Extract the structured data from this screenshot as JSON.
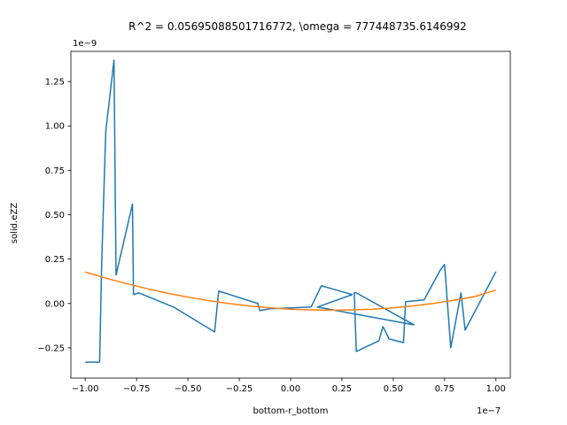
{
  "chart_data": {
    "type": "line",
    "title": "R^2 = 0.05695088501716772, \\omega = 777448735.6146992",
    "xlabel": "bottom-r_bottom",
    "ylabel": "solid.eZZ",
    "x_offset_label": "1e−7",
    "y_offset_label": "1e−9",
    "xlim": [
      -1.07e-07,
      1.07e-07
    ],
    "ylim": [
      -4.2e-10,
      1.42e-09
    ],
    "x_ticks": [
      {
        "value": -1e-07,
        "label": "−1.00"
      },
      {
        "value": -7.5e-08,
        "label": "−0.75"
      },
      {
        "value": -5e-08,
        "label": "−0.50"
      },
      {
        "value": -2.5e-08,
        "label": "−0.25"
      },
      {
        "value": 0.0,
        "label": "0.00"
      },
      {
        "value": 2.5e-08,
        "label": "0.25"
      },
      {
        "value": 5e-08,
        "label": "0.50"
      },
      {
        "value": 7.5e-08,
        "label": "0.75"
      },
      {
        "value": 1e-07,
        "label": "1.00"
      }
    ],
    "y_ticks": [
      {
        "value": -2.5e-10,
        "label": "−0.25"
      },
      {
        "value": 0.0,
        "label": "0.00"
      },
      {
        "value": 2.5e-10,
        "label": "0.25"
      },
      {
        "value": 5e-10,
        "label": "0.50"
      },
      {
        "value": 7.5e-10,
        "label": "0.75"
      },
      {
        "value": 1e-09,
        "label": "1.00"
      },
      {
        "value": 1.25e-09,
        "label": "1.25"
      }
    ],
    "grid": false,
    "series": [
      {
        "color": "#1f77b4",
        "x": [
          -1e-07,
          -9.3e-08,
          -9.2e-08,
          -9e-08,
          -8.6e-08,
          -8.5e-08,
          -7.7e-08,
          -7.65e-08,
          -7.4e-08,
          -5.7e-08,
          -3.7e-08,
          -3.5e-08,
          -1.6e-08,
          -1.5e-08,
          -1e-08,
          1e-08,
          1.5e-08,
          3e-08,
          1.3e-08,
          6e-08,
          3.2e-08,
          3.1e-08,
          3.2e-08,
          4.3e-08,
          4.5e-08,
          4.8e-08,
          5.5e-08,
          5.6e-08,
          6.5e-08,
          7.3e-08,
          7.5e-08,
          7.8e-08,
          8.3e-08,
          8.5e-08,
          1e-07
        ],
        "y": [
          -3.3e-10,
          -3.3e-10,
          2.3e-10,
          9.7e-10,
          1.37e-09,
          1.6e-10,
          5.6e-10,
          5e-11,
          6e-11,
          -2e-11,
          -1.6e-10,
          7e-11,
          0.0,
          -4e-11,
          -3e-11,
          -2e-11,
          1e-10,
          5e-11,
          -2e-11,
          -1.2e-10,
          6e-11,
          6e-11,
          -2.7e-10,
          -2.1e-10,
          -1.3e-10,
          -2e-10,
          -2.2e-10,
          1e-11,
          2e-11,
          1.9e-10,
          2.2e-10,
          -2.5e-10,
          6e-11,
          -1.5e-10,
          1.8e-10
        ]
      },
      {
        "color": "#ff7f0e",
        "x": [
          -1e-07,
          -9e-08,
          -8e-08,
          -7e-08,
          -6e-08,
          -5e-08,
          -4e-08,
          -3e-08,
          -2e-08,
          -1e-08,
          0.0,
          1e-08,
          2e-08,
          3e-08,
          4e-08,
          5e-08,
          6e-08,
          7e-08,
          8e-08,
          9e-08,
          1e-07
        ],
        "y": [
          1.77e-10,
          1.43e-10,
          1.12e-10,
          8.4e-11,
          5.8e-11,
          3.6e-11,
          1.6e-11,
          0.0,
          -1.4e-11,
          -2.4e-11,
          -3.2e-11,
          -3.6e-11,
          -3.8e-11,
          -3.6e-11,
          -3.2e-11,
          -2.4e-11,
          -1.3e-11,
          1e-12,
          1.9e-11,
          4e-11,
          7.6e-11
        ]
      }
    ]
  }
}
